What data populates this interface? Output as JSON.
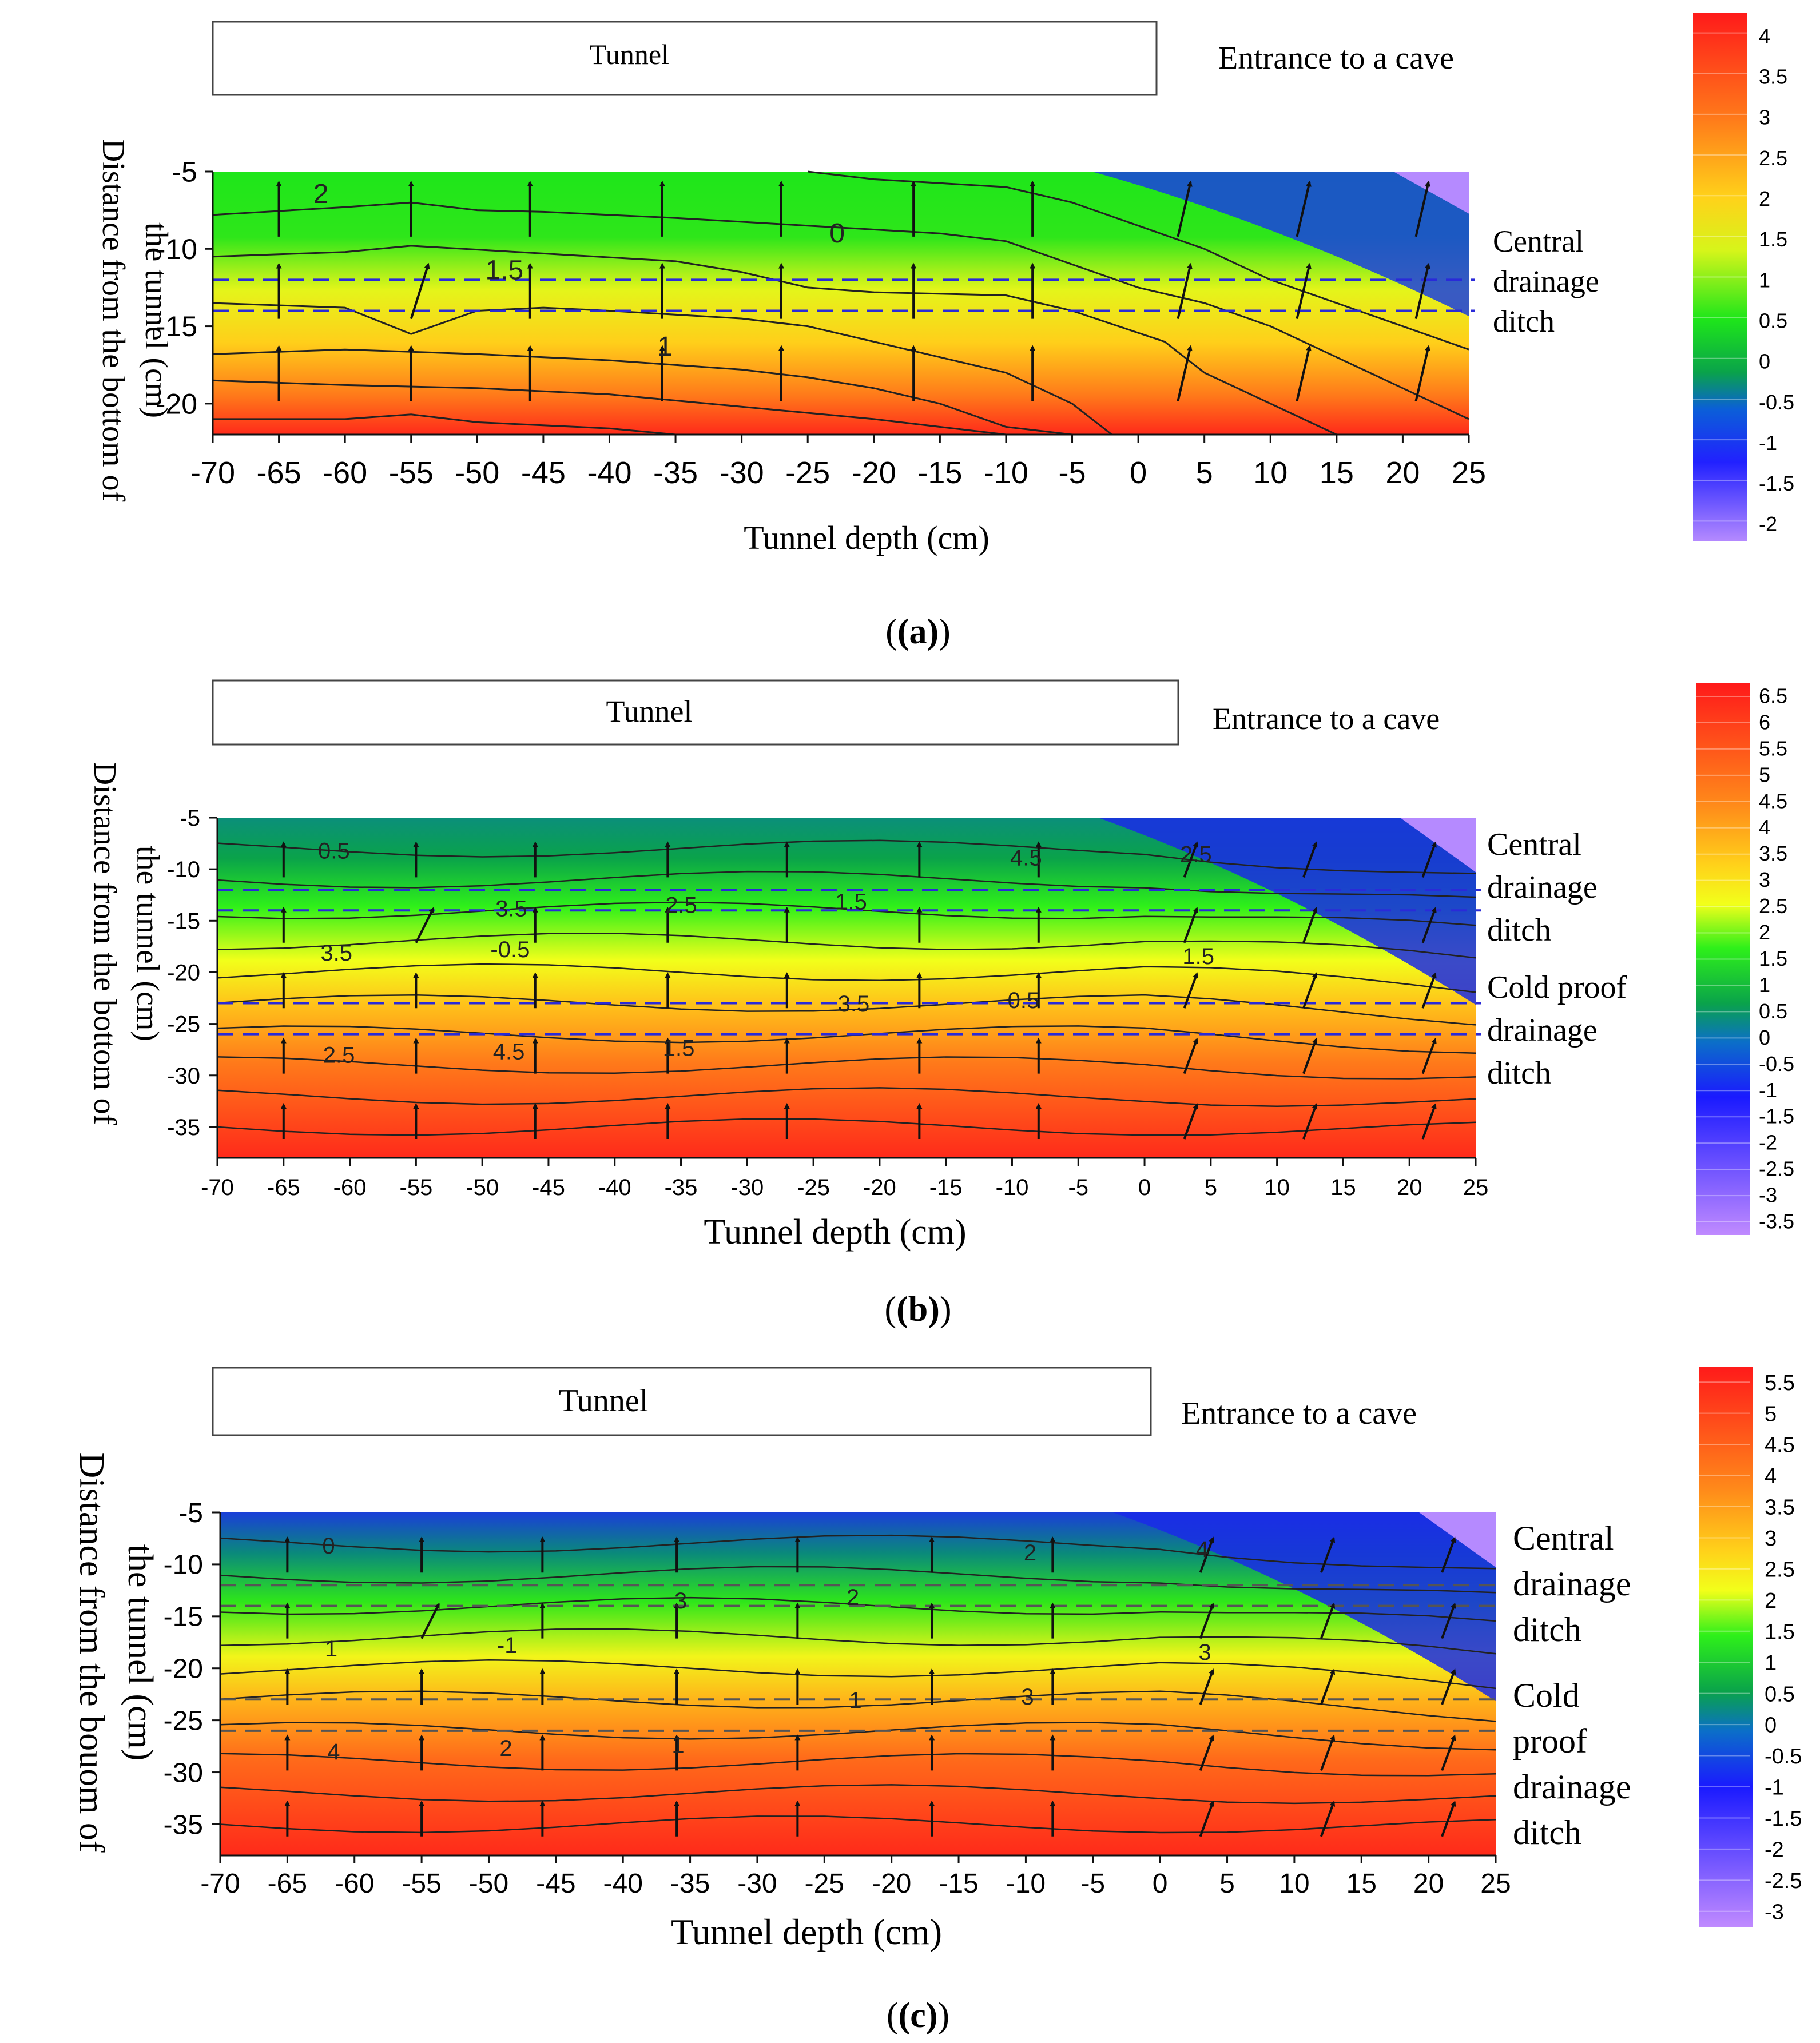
{
  "figure": {
    "panels": [
      {
        "caption": "(a)",
        "tunnel_label": "Tunnel",
        "entrance_label": "Entrance to a cave",
        "ditch_labels": [
          [
            "Central",
            "drainage",
            "ditch"
          ]
        ],
        "contour_labels": [
          "2",
          "1.5",
          "1",
          "0"
        ]
      },
      {
        "caption": "(b)",
        "tunnel_label": "Tunnel",
        "entrance_label": "Entrance to a cave",
        "ditch_labels": [
          [
            "Central",
            "drainage",
            "ditch"
          ],
          [
            "Cold proof",
            "drainage",
            "ditch"
          ]
        ],
        "contour_labels": [
          "0.5",
          "-0.5",
          "1.5",
          "1.5",
          "0.5",
          "2.5",
          "3.5",
          "4.5",
          "2.5",
          "3.5",
          "4.5",
          "1.5",
          "2.5",
          "3.5"
        ]
      },
      {
        "caption": "(c)",
        "tunnel_label": "Tunnel",
        "entrance_label": "Entrance to a cave",
        "ditch_labels": [
          [
            "Central",
            "drainage",
            "ditch"
          ],
          [
            "Cold",
            "proof",
            "drainage",
            "ditch"
          ]
        ],
        "contour_labels": [
          "0",
          "-1",
          "1",
          "2",
          "3",
          "4",
          "1",
          "2",
          "3",
          "1",
          "2",
          "3",
          "4"
        ]
      }
    ]
  },
  "chart_data": [
    {
      "type": "heatmap",
      "title": "(a)",
      "xlabel": "Tunnel depth (cm)",
      "ylabel": "Distance from the bottom of the tunnel (cm)",
      "xlim": [
        -70,
        25
      ],
      "ylim": [
        -22,
        -5
      ],
      "x_ticks": [
        "-70",
        "-65",
        "-60",
        "-55",
        "-50",
        "-45",
        "-40",
        "-35",
        "-30",
        "-25",
        "-20",
        "-15",
        "-10",
        "-5",
        "0",
        "5",
        "10",
        "15",
        "20",
        "25"
      ],
      "y_ticks": [
        "-5",
        "-10",
        "-15",
        "-20"
      ],
      "colorbar_ticks": [
        "4",
        "3.5",
        "3",
        "2.5",
        "2",
        "1.5",
        "1",
        "0.5",
        "0",
        "-0.5",
        "-1",
        "-1.5",
        "-2"
      ],
      "colorbar_range": [
        -2,
        4.5
      ],
      "ditch_depths": [
        -12,
        -14
      ],
      "contours": [
        {
          "level": 2,
          "points": [
            [
              -70,
              -13.5
            ],
            [
              -60,
              -13.8
            ],
            [
              -55,
              -15.5
            ],
            [
              -50,
              -14
            ],
            [
              -45,
              -13.8
            ],
            [
              -40,
              -14
            ],
            [
              -30,
              -14.5
            ],
            [
              -25,
              -15
            ],
            [
              -20,
              -16
            ],
            [
              -15,
              -17
            ],
            [
              -10,
              -18
            ],
            [
              -5,
              -20
            ],
            [
              -2,
              -22
            ]
          ]
        },
        {
          "level": 1.5,
          "points": [
            [
              -70,
              -10.5
            ],
            [
              -60,
              -10.2
            ],
            [
              -55,
              -9.8
            ],
            [
              -45,
              -10.3
            ],
            [
              -35,
              -10.8
            ],
            [
              -30,
              -11.5
            ],
            [
              -25,
              -12.5
            ],
            [
              -20,
              -12.8
            ],
            [
              -10,
              -13
            ],
            [
              -5,
              -14
            ],
            [
              2,
              -16
            ],
            [
              5,
              -18
            ],
            [
              10,
              -20
            ],
            [
              15,
              -22
            ]
          ]
        },
        {
          "level": 1,
          "points": [
            [
              -70,
              -7.8
            ],
            [
              -60,
              -7.3
            ],
            [
              -55,
              -7
            ],
            [
              -50,
              -7.5
            ],
            [
              -45,
              -7.6
            ],
            [
              -35,
              -8
            ],
            [
              -25,
              -8.5
            ],
            [
              -15,
              -9
            ],
            [
              -10,
              -9.5
            ],
            [
              -5,
              -11
            ],
            [
              0,
              -12.5
            ],
            [
              5,
              -13.5
            ],
            [
              10,
              -15
            ],
            [
              15,
              -17
            ],
            [
              20,
              -19
            ],
            [
              25,
              -21
            ]
          ]
        },
        {
          "level": 0,
          "points": [
            [
              -25,
              -5
            ],
            [
              -20,
              -5.5
            ],
            [
              -10,
              -6
            ],
            [
              -5,
              -7
            ],
            [
              0,
              -8.5
            ],
            [
              5,
              -10
            ],
            [
              10,
              -12
            ],
            [
              15,
              -13.5
            ],
            [
              20,
              -15
            ],
            [
              25,
              -16.5
            ]
          ]
        },
        {
          "level": 2.5,
          "points": [
            [
              -70,
              -16.8
            ],
            [
              -60,
              -16.5
            ],
            [
              -50,
              -16.8
            ],
            [
              -40,
              -17.2
            ],
            [
              -30,
              -17.8
            ],
            [
              -25,
              -18.3
            ],
            [
              -20,
              -19
            ],
            [
              -15,
              -20
            ],
            [
              -10,
              -21.5
            ],
            [
              -5,
              -22
            ]
          ]
        },
        {
          "level": 3,
          "points": [
            [
              -70,
              -18.5
            ],
            [
              -60,
              -18.8
            ],
            [
              -50,
              -19
            ],
            [
              -40,
              -19.4
            ],
            [
              -30,
              -20.2
            ],
            [
              -20,
              -21
            ],
            [
              -15,
              -21.5
            ],
            [
              -10,
              -22
            ]
          ]
        },
        {
          "level": 3.5,
          "points": [
            [
              -70,
              -21
            ],
            [
              -60,
              -21
            ],
            [
              -55,
              -20.7
            ],
            [
              -50,
              -21.2
            ],
            [
              -40,
              -21.6
            ],
            [
              -35,
              -22
            ]
          ]
        }
      ]
    },
    {
      "type": "heatmap",
      "title": "(b)",
      "xlabel": "Tunnel depth (cm)",
      "ylabel": "Distance from the bottom of the tunnel (cm)",
      "xlim": [
        -70,
        25
      ],
      "ylim": [
        -38,
        -5
      ],
      "x_ticks": [
        "-70",
        "-65",
        "-60",
        "-55",
        "-50",
        "-45",
        "-40",
        "-35",
        "-30",
        "-25",
        "-20",
        "-15",
        "-10",
        "-5",
        "0",
        "5",
        "10",
        "15",
        "20",
        "25"
      ],
      "y_ticks": [
        "-5",
        "-10",
        "-15",
        "-20",
        "-25",
        "-30",
        "-35"
      ],
      "colorbar_ticks": [
        "6.5",
        "6",
        "5.5",
        "5",
        "4.5",
        "4",
        "3.5",
        "3",
        "2.5",
        "2",
        "1.5",
        "1",
        "0.5",
        "0",
        "-0.5",
        "-1",
        "-1.5",
        "-2",
        "-2.5",
        "-3",
        "-3.5"
      ],
      "colorbar_range": [
        -3.5,
        7
      ],
      "ditch_depths": [
        -12,
        -14,
        -23,
        -26
      ]
    },
    {
      "type": "heatmap",
      "title": "(c)",
      "xlabel": "Tunnel depth (cm)",
      "ylabel": "Distance from the bouom of the tunnel (cm)",
      "xlim": [
        -70,
        25
      ],
      "ylim": [
        -38,
        -5
      ],
      "x_ticks": [
        "-70",
        "-65",
        "-60",
        "-55",
        "-50",
        "-45",
        "-40",
        "-35",
        "-30",
        "-25",
        "-20",
        "-15",
        "-10",
        "-5",
        "0",
        "5",
        "10",
        "15",
        "20",
        "25"
      ],
      "y_ticks": [
        "-5",
        "-10",
        "-15",
        "-20",
        "-25",
        "-30",
        "-35"
      ],
      "colorbar_ticks": [
        "5.5",
        "5",
        "4.5",
        "4",
        "3.5",
        "3",
        "2.5",
        "2",
        "1.5",
        "1",
        "0.5",
        "0",
        "-0.5",
        "-1",
        "-1.5",
        "-2",
        "-2.5",
        "-3"
      ],
      "colorbar_range": [
        -3,
        6
      ],
      "ditch_depths": [
        -12,
        -14,
        -23,
        -26
      ]
    }
  ]
}
